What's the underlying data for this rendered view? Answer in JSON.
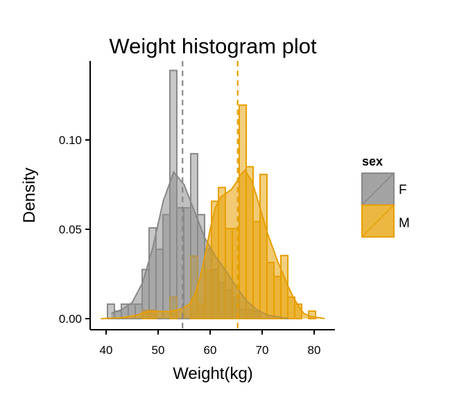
{
  "chart_data": {
    "type": "histogram",
    "title": "Weight histogram plot",
    "xlabel": "Weight(kg)",
    "ylabel": "Density",
    "xlim": [
      37,
      83
    ],
    "ylim": [
      -0.006,
      0.145
    ],
    "xticks": [
      40,
      50,
      60,
      70,
      80
    ],
    "xtick_labels": [
      "40",
      "50",
      "60",
      "70",
      "80"
    ],
    "yticks": [
      0,
      0.05,
      0.1
    ],
    "ytick_labels": [
      "0.00",
      "0.05",
      "0.10"
    ],
    "grid": false,
    "legend": {
      "title": "sex",
      "position": "right"
    },
    "bin_width": 1.333,
    "bin_centers": [
      40.93,
      42.27,
      43.6,
      44.93,
      46.27,
      47.6,
      48.93,
      50.27,
      51.6,
      52.93,
      54.27,
      55.6,
      56.93,
      58.27,
      59.6,
      60.93,
      62.27,
      63.6,
      64.93,
      66.27,
      67.6,
      68.93,
      70.27,
      71.6,
      72.93,
      74.27,
      75.6,
      76.93,
      78.27,
      79.6
    ],
    "series": [
      {
        "name": "F",
        "color": "#999999",
        "line_color": "#888888",
        "mean": 54.7,
        "density_hist": [
          0.0081,
          0.0042,
          0.0081,
          0.0081,
          0.0081,
          0.0275,
          0.0508,
          0.0388,
          0.0582,
          0.1389,
          0.062,
          0.062,
          0.0923,
          0.0582,
          0.039,
          0.0275,
          0.02,
          0.016,
          0.012,
          0.005,
          0.005,
          0.004,
          0,
          0,
          0,
          0,
          0,
          0,
          0,
          0
        ],
        "kde": {
          "x": [
            41,
            43,
            45,
            47,
            49,
            51,
            53,
            55,
            57,
            59,
            61,
            63,
            65,
            67,
            69,
            71,
            73,
            75
          ],
          "y": [
            0.003,
            0.005,
            0.009,
            0.02,
            0.04,
            0.066,
            0.082,
            0.075,
            0.06,
            0.045,
            0.035,
            0.027,
            0.018,
            0.01,
            0.005,
            0.002,
            0.001,
            0
          ]
        }
      },
      {
        "name": "M",
        "color": "#E69F00",
        "line_color": "#E69F00",
        "mean": 65.3,
        "density_hist": [
          0,
          0,
          0,
          0,
          0,
          0.0047,
          0.0047,
          0,
          0,
          0.012,
          0,
          0,
          0.035,
          0.008,
          0.027,
          0.0657,
          0.0734,
          0.0504,
          0.0504,
          0.1195,
          0.085,
          0.0543,
          0.0807,
          0.0314,
          0.0236,
          0.0353,
          0.012,
          0.0081,
          0,
          0.0042
        ],
        "kde": {
          "x": [
            39,
            43,
            46,
            48,
            50,
            52,
            54,
            56,
            57,
            58,
            59,
            60,
            61,
            62,
            63,
            64,
            65,
            66,
            66.7,
            68,
            69,
            70,
            71,
            72,
            73,
            74,
            75,
            76,
            77,
            78,
            79,
            80,
            82
          ],
          "y": [
            0,
            0.0005,
            0.002,
            0.004,
            0.004,
            0.004,
            0.005,
            0.008,
            0.013,
            0.022,
            0.035,
            0.05,
            0.062,
            0.068,
            0.07,
            0.072,
            0.076,
            0.081,
            0.083,
            0.077,
            0.068,
            0.058,
            0.048,
            0.04,
            0.032,
            0.025,
            0.018,
            0.012,
            0.007,
            0.003,
            0.0015,
            0.001,
            0
          ]
        }
      }
    ]
  }
}
